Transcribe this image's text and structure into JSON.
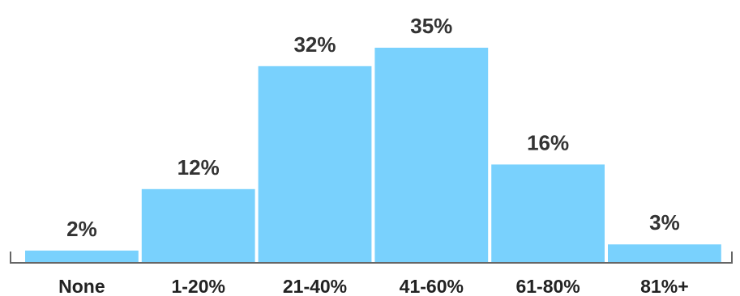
{
  "chart_data": {
    "type": "bar",
    "categories": [
      "None",
      "1-20%",
      "21-40%",
      "41-60%",
      "61-80%",
      "81%+"
    ],
    "values": [
      2,
      12,
      32,
      35,
      16,
      3
    ],
    "value_labels": [
      "2%",
      "12%",
      "32%",
      "35%",
      "16%",
      "3%"
    ],
    "title": "",
    "xlabel": "",
    "ylabel": "",
    "ylim": [
      0,
      35
    ],
    "grid": false,
    "legend": "none",
    "bar_color": "#79d1fd"
  }
}
